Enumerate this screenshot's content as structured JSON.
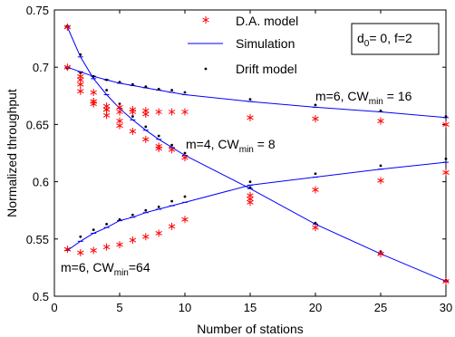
{
  "chart_data": {
    "type": "line",
    "title": "",
    "xlabel": "Number of stations",
    "ylabel": "Normalized throughput",
    "xlim": [
      0,
      30
    ],
    "ylim": [
      0.5,
      0.75
    ],
    "xticks": [
      0,
      5,
      10,
      15,
      20,
      25,
      30
    ],
    "yticks": [
      0.5,
      0.55,
      0.6,
      0.65,
      0.7,
      0.75
    ],
    "ytick_labels": [
      "0.5",
      "0.55",
      "0.6",
      "0.65",
      "0.7",
      "0.75"
    ],
    "grid": false,
    "legend": {
      "placement": "top-center",
      "entries": [
        {
          "label": "D.A. model",
          "marker": "asterisk",
          "color": "#ff0000"
        },
        {
          "label": "Simulation",
          "marker": "line",
          "color": "#0000ff"
        },
        {
          "label": "Drift model",
          "marker": "dot",
          "color": "#000000"
        }
      ]
    },
    "param_box": {
      "d_main": "d",
      "d_sub": "0",
      "rest": "= 0, f=2"
    },
    "curve_labels": [
      {
        "id": "cw16",
        "prefix": "m=6, CW",
        "sub": "min",
        "suffix": " = 16"
      },
      {
        "id": "cw8",
        "prefix": "m=4, CW",
        "sub": "min",
        "suffix": " = 8"
      },
      {
        "id": "cw64",
        "prefix": "m=6, CW",
        "sub": "min",
        "suffix": "=64"
      }
    ],
    "x": [
      1,
      2,
      3,
      4,
      5,
      6,
      7,
      8,
      9,
      10,
      15,
      20,
      25,
      30
    ],
    "series": [
      {
        "id": "cw16",
        "simulation": [
          0.7,
          0.696,
          0.692,
          0.689,
          0.686,
          0.684,
          0.682,
          0.68,
          0.678,
          0.676,
          0.67,
          0.665,
          0.661,
          0.656
        ],
        "drift": [
          0.699,
          0.695,
          0.692,
          0.689,
          0.687,
          0.685,
          0.683,
          0.681,
          0.68,
          0.678,
          0.672,
          0.667,
          0.662,
          0.657
        ],
        "da_model": [
          [
            1,
            0.7
          ],
          [
            2,
            0.685
          ],
          [
            2,
            0.679
          ],
          [
            3,
            0.67
          ],
          [
            3,
            0.668
          ],
          [
            4,
            0.666
          ],
          [
            4,
            0.663
          ],
          [
            5,
            0.665
          ],
          [
            5,
            0.661
          ],
          [
            6,
            0.663
          ],
          [
            6,
            0.661
          ],
          [
            7,
            0.662
          ],
          [
            7,
            0.659
          ],
          [
            8,
            0.661
          ],
          [
            9,
            0.661
          ],
          [
            10,
            0.661
          ],
          [
            15,
            0.656
          ],
          [
            20,
            0.655
          ],
          [
            25,
            0.653
          ],
          [
            30,
            0.65
          ]
        ]
      },
      {
        "id": "cw8",
        "simulation": [
          0.735,
          0.709,
          0.69,
          0.676,
          0.664,
          0.654,
          0.645,
          0.637,
          0.63,
          0.623,
          0.594,
          0.563,
          0.537,
          0.513
        ],
        "drift": [
          0.736,
          0.711,
          0.692,
          0.68,
          0.668,
          0.657,
          0.648,
          0.64,
          0.632,
          0.625,
          0.595,
          0.564,
          0.539,
          0.514
        ],
        "da_model": [
          [
            1,
            0.735
          ],
          [
            2,
            0.692
          ],
          [
            2,
            0.689
          ],
          [
            3,
            0.678
          ],
          [
            3,
            0.67
          ],
          [
            4,
            0.663
          ],
          [
            4,
            0.658
          ],
          [
            5,
            0.653
          ],
          [
            5,
            0.649
          ],
          [
            6,
            0.644
          ],
          [
            7,
            0.637
          ],
          [
            8,
            0.631
          ],
          [
            8,
            0.629
          ],
          [
            9,
            0.628
          ],
          [
            10,
            0.621
          ],
          [
            15,
            0.585
          ],
          [
            15,
            0.582
          ],
          [
            20,
            0.56
          ],
          [
            25,
            0.537
          ],
          [
            30,
            0.513
          ]
        ]
      },
      {
        "id": "cw64",
        "simulation": [
          0.54,
          0.548,
          0.555,
          0.56,
          0.566,
          0.569,
          0.573,
          0.576,
          0.579,
          0.582,
          0.597,
          0.604,
          0.611,
          0.617
        ],
        "drift": [
          0.541,
          0.552,
          0.558,
          0.563,
          0.567,
          0.571,
          0.575,
          0.578,
          0.583,
          0.587,
          0.6,
          0.607,
          0.614,
          0.62
        ],
        "da_model": [
          [
            1,
            0.541
          ],
          [
            2,
            0.538
          ],
          [
            3,
            0.54
          ],
          [
            4,
            0.543
          ],
          [
            5,
            0.545
          ],
          [
            6,
            0.549
          ],
          [
            7,
            0.552
          ],
          [
            8,
            0.555
          ],
          [
            9,
            0.561
          ],
          [
            10,
            0.567
          ],
          [
            15,
            0.588
          ],
          [
            20,
            0.593
          ],
          [
            25,
            0.601
          ],
          [
            30,
            0.608
          ]
        ]
      }
    ]
  }
}
